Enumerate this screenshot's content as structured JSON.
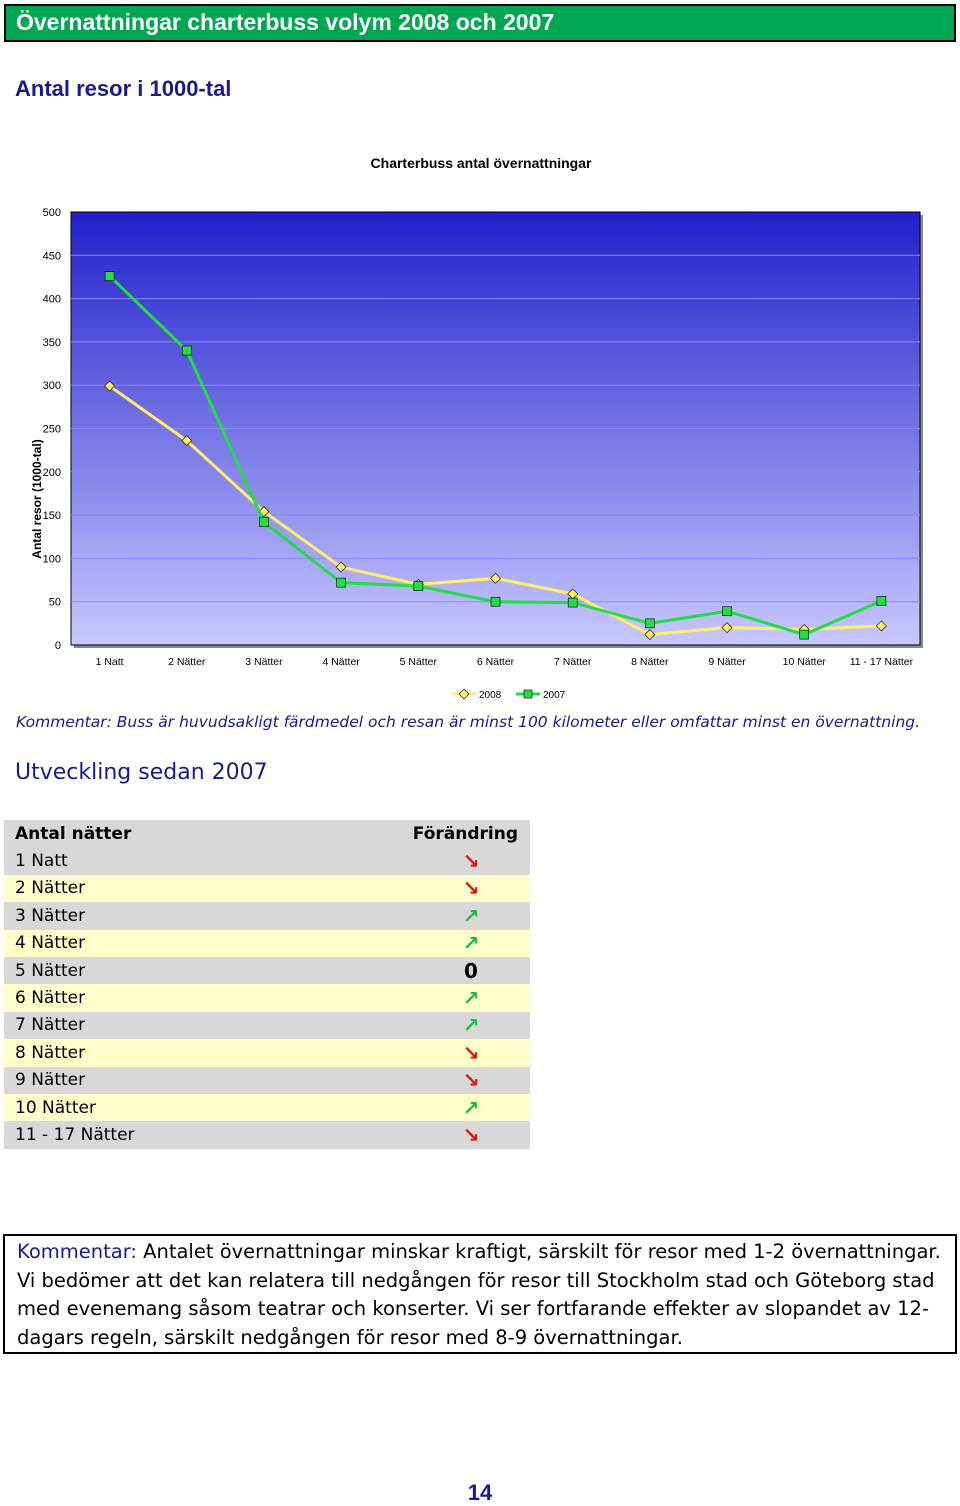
{
  "title": "Övernattningar charterbuss volym 2008 och 2007",
  "section1_title": "Antal resor i 1000-tal",
  "chart_data": {
    "type": "line",
    "title": "Charterbuss antal övernattningar",
    "ylabel": "Antal resor (1000-tal)",
    "xlabel": "",
    "ylim": [
      0,
      500
    ],
    "yticks": [
      0,
      50,
      100,
      150,
      200,
      250,
      300,
      350,
      400,
      450,
      500
    ],
    "grid": true,
    "legend": "bottom-center",
    "categories": [
      "1 Natt",
      "2 Nätter",
      "3 Nätter",
      "4 Nätter",
      "5 Nätter",
      "6 Nätter",
      "7 Nätter",
      "8 Nätter",
      "9 Nätter",
      "10 Nätter",
      "11 - 17 Nätter"
    ],
    "series": [
      {
        "name": "2008",
        "color": "#ffee66",
        "marker": "diamond",
        "values": [
          299,
          236,
          154,
          90,
          70,
          77,
          59,
          12,
          20,
          18,
          22
        ]
      },
      {
        "name": "2007",
        "color": "#22dd44",
        "marker": "square",
        "values": [
          426,
          340,
          142,
          72,
          68,
          50,
          49,
          25,
          39,
          12,
          51
        ]
      }
    ],
    "colors": {
      "plot_top": "#2020cc",
      "plot_bottom": "#c8c8ff"
    }
  },
  "comment1": "Kommentar: Buss är huvudsakligt färdmedel och resan är minst 100 kilometer eller omfattar minst en övernattning.",
  "section2_title": "Utveckling sedan 2007",
  "table": {
    "header": {
      "col1": "Antal nätter",
      "col2": "Förändring"
    },
    "rows": [
      {
        "label": "1 Natt",
        "change": "down",
        "symbol": "↘"
      },
      {
        "label": "2 Nätter",
        "change": "down",
        "symbol": "↘"
      },
      {
        "label": "3 Nätter",
        "change": "up",
        "symbol": "↗"
      },
      {
        "label": "4 Nätter",
        "change": "up",
        "symbol": "↗"
      },
      {
        "label": "5 Nätter",
        "change": "zero",
        "symbol": "0"
      },
      {
        "label": "6 Nätter",
        "change": "up",
        "symbol": "↗"
      },
      {
        "label": "7 Nätter",
        "change": "up",
        "symbol": "↗"
      },
      {
        "label": "8 Nätter",
        "change": "down",
        "symbol": "↘"
      },
      {
        "label": "9 Nätter",
        "change": "down",
        "symbol": "↘"
      },
      {
        "label": "10 Nätter",
        "change": "up",
        "symbol": "↗"
      },
      {
        "label": "11 - 17 Nätter",
        "change": "down",
        "symbol": "↘"
      }
    ]
  },
  "comment2": {
    "label": "Kommentar:",
    "text": " Antalet övernattningar minskar kraftigt, särskilt för resor med 1-2 övernattningar. Vi bedömer att det kan relatera till nedgången för resor till Stockholm stad och Göteborg stad med evenemang såsom teatrar och konserter. Vi ser fortfarande effekter av slopandet av 12-dagars regeln, särskilt nedgången för resor med 8-9 övernattningar."
  },
  "page_number": "14"
}
